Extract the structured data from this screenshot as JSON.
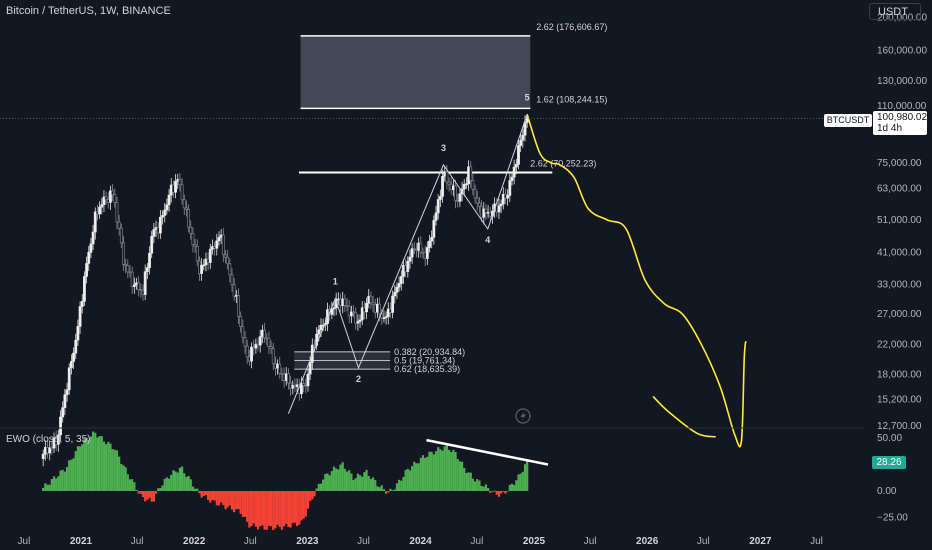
{
  "header": {
    "title": "Bitcoin / TetherUS, 1W, BINANCE"
  },
  "currency_button": "USDT",
  "price_tag": {
    "symbol": "BTCUSDT",
    "price": "100,980.02",
    "countdown": "1d 4h"
  },
  "ewo": {
    "title": "EWO (close, 5, 35)",
    "current_value": "28.26"
  },
  "colors": {
    "background": "#131722",
    "up": "#26a69a",
    "down": "#ef5350",
    "projection": "#ffeb3b",
    "ewo_up": "#4caf50",
    "ewo_down": "#f44336"
  },
  "logo_icon": "lightning-icon",
  "chart_data": [
    {
      "type": "candlestick",
      "title": "Bitcoin / TetherUS, 1W, BINANCE",
      "y_scale": "log",
      "y_ticks": [
        "200,000.00",
        "160,000.00",
        "130,000.00",
        "110,000.00",
        "75,000.00",
        "63,000.00",
        "51,000.00",
        "41,000.00",
        "33,000.00",
        "27,000.00",
        "22,000.00",
        "18,000.00",
        "15,200.00",
        "12,700.00"
      ],
      "y_tick_values": [
        200000,
        160000,
        130000,
        110000,
        75000,
        63000,
        51000,
        41000,
        33000,
        27000,
        22000,
        18000,
        15200,
        12700
      ],
      "x_ticks": [
        "Jul",
        "2021",
        "Jul",
        "2022",
        "Jul",
        "2023",
        "Jul",
        "2024",
        "Jul",
        "2025",
        "Jul",
        "2026",
        "Jul",
        "2027",
        "Jul"
      ],
      "x_tick_dates": [
        "2020-07-01",
        "2021-01-01",
        "2021-07-01",
        "2022-01-01",
        "2022-07-01",
        "2023-01-01",
        "2023-07-01",
        "2024-01-01",
        "2024-07-01",
        "2025-01-01",
        "2025-07-01",
        "2026-01-01",
        "2026-07-01",
        "2027-01-01",
        "2027-07-01"
      ],
      "last_price": 100980.02,
      "price_path": [
        [
          "2020-09-01",
          10500
        ],
        [
          "2020-10-15",
          11500
        ],
        [
          "2020-11-15",
          16500
        ],
        [
          "2020-12-20",
          24000
        ],
        [
          "2021-01-15",
          36000
        ],
        [
          "2021-02-20",
          54000
        ],
        [
          "2021-03-15",
          58000
        ],
        [
          "2021-04-15",
          61000
        ],
        [
          "2021-05-20",
          38000
        ],
        [
          "2021-06-20",
          33000
        ],
        [
          "2021-07-20",
          31500
        ],
        [
          "2021-08-20",
          47000
        ],
        [
          "2021-09-10",
          49000
        ],
        [
          "2021-10-20",
          63000
        ],
        [
          "2021-11-10",
          67000
        ],
        [
          "2021-12-20",
          47000
        ],
        [
          "2022-01-20",
          36000
        ],
        [
          "2022-03-25",
          46000
        ],
        [
          "2022-05-15",
          30000
        ],
        [
          "2022-06-20",
          20000
        ],
        [
          "2022-08-15",
          24000
        ],
        [
          "2022-09-20",
          19000
        ],
        [
          "2022-11-15",
          16500
        ],
        [
          "2022-12-25",
          16500
        ],
        [
          "2023-01-25",
          23000
        ],
        [
          "2023-03-20",
          28000
        ],
        [
          "2023-04-15",
          30000
        ],
        [
          "2023-06-15",
          25500
        ],
        [
          "2023-07-15",
          30000
        ],
        [
          "2023-09-10",
          26000
        ],
        [
          "2023-10-25",
          34000
        ],
        [
          "2023-12-15",
          43000
        ],
        [
          "2024-01-20",
          40000
        ],
        [
          "2024-02-25",
          56000
        ],
        [
          "2024-03-15",
          70000
        ],
        [
          "2024-05-01",
          58000
        ],
        [
          "2024-06-05",
          70500
        ],
        [
          "2024-07-05",
          55000
        ],
        [
          "2024-08-05",
          53000
        ],
        [
          "2024-09-10",
          56000
        ],
        [
          "2024-10-10",
          62000
        ],
        [
          "2024-11-10",
          80000
        ],
        [
          "2024-12-01",
          97000
        ],
        [
          "2024-12-10",
          101000
        ]
      ],
      "fib_levels": [
        {
          "label": "2.62 (176,606.67)",
          "value": 176606.67
        },
        {
          "label": "1.62 (108,244.15)",
          "value": 108244.15
        },
        {
          "label": "2.62 (70,252.23)",
          "value": 70252.23
        },
        {
          "label": "0.382 (20,934.84)",
          "value": 20934.84
        },
        {
          "label": "0.5 (19,761.34)",
          "value": 19761.34
        },
        {
          "label": "0.62 (18,635.39)",
          "value": 18635.39
        }
      ],
      "elliott_waves": [
        {
          "label": "1",
          "date": "2023-04-01",
          "value": 30000
        },
        {
          "label": "2",
          "date": "2023-06-15",
          "value": 18800
        },
        {
          "label": "3",
          "date": "2024-03-15",
          "value": 74000
        },
        {
          "label": "4",
          "date": "2024-08-05",
          "value": 48000
        },
        {
          "label": "5",
          "date": "2024-12-10",
          "value": 104000
        }
      ],
      "projection_path": [
        [
          "2024-12-10",
          104000
        ],
        [
          "2025-01-20",
          80000
        ],
        [
          "2025-02-25",
          75000
        ],
        [
          "2025-03-25",
          74000
        ],
        [
          "2025-05-10",
          68000
        ],
        [
          "2025-06-25",
          55000
        ],
        [
          "2025-08-25",
          51000
        ],
        [
          "2025-10-25",
          48000
        ],
        [
          "2025-12-25",
          34000
        ],
        [
          "2026-02-25",
          29000
        ],
        [
          "2026-04-25",
          27000
        ],
        [
          "2026-06-25",
          22000
        ],
        [
          "2026-08-25",
          16500
        ],
        [
          "2026-10-10",
          12000
        ],
        [
          "2026-11-01",
          11500
        ],
        [
          "2026-11-10",
          20000
        ],
        [
          "2026-11-15",
          22500
        ]
      ],
      "projection_tail": [
        [
          "2026-01-20",
          15500
        ],
        [
          "2026-03-10",
          14000
        ],
        [
          "2026-06-10",
          12100
        ],
        [
          "2026-08-10",
          11800
        ]
      ]
    },
    {
      "type": "bar",
      "title": "EWO (close, 5, 35)",
      "y_ticks": [
        "50.00",
        "25.00",
        "0.00",
        "−25.00"
      ],
      "y_tick_values": [
        50,
        25,
        0,
        -25
      ],
      "current_value": 28.26,
      "profile": [
        [
          "2020-09-01",
          3
        ],
        [
          "2020-11-15",
          22
        ],
        [
          "2021-01-01",
          45
        ],
        [
          "2021-02-15",
          55
        ],
        [
          "2021-03-15",
          48
        ],
        [
          "2021-04-20",
          40
        ],
        [
          "2021-05-25",
          20
        ],
        [
          "2021-06-25",
          5
        ],
        [
          "2021-07-15",
          -6
        ],
        [
          "2021-08-20",
          -10
        ],
        [
          "2021-09-15",
          5
        ],
        [
          "2021-10-15",
          15
        ],
        [
          "2021-11-20",
          22
        ],
        [
          "2021-12-20",
          10
        ],
        [
          "2022-01-15",
          -2
        ],
        [
          "2022-03-01",
          -10
        ],
        [
          "2022-04-15",
          -15
        ],
        [
          "2022-06-01",
          -20
        ],
        [
          "2022-06-25",
          -32
        ],
        [
          "2022-08-15",
          -35
        ],
        [
          "2022-10-15",
          -34
        ],
        [
          "2022-12-15",
          -30
        ],
        [
          "2023-01-20",
          -5
        ],
        [
          "2023-02-20",
          12
        ],
        [
          "2023-03-25",
          20
        ],
        [
          "2023-04-25",
          25
        ],
        [
          "2023-06-01",
          12
        ],
        [
          "2023-07-10",
          18
        ],
        [
          "2023-08-20",
          5
        ],
        [
          "2023-09-20",
          -2
        ],
        [
          "2023-10-15",
          5
        ],
        [
          "2023-11-20",
          20
        ],
        [
          "2024-01-10",
          32
        ],
        [
          "2024-02-20",
          38
        ],
        [
          "2024-03-25",
          42
        ],
        [
          "2024-04-25",
          35
        ],
        [
          "2024-05-20",
          22
        ],
        [
          "2024-06-20",
          12
        ],
        [
          "2024-07-20",
          6
        ],
        [
          "2024-08-25",
          -2
        ],
        [
          "2024-09-20",
          -4
        ],
        [
          "2024-10-10",
          2
        ],
        [
          "2024-11-10",
          12
        ],
        [
          "2024-12-10",
          28
        ]
      ],
      "divergence_line": [
        [
          "2024-01-20",
          48
        ],
        [
          "2025-02-15",
          25
        ]
      ]
    }
  ]
}
